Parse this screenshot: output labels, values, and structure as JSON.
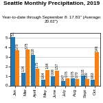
{
  "chart_data": {
    "type": "bar",
    "title": "Seattle Monthly Precipitation, 2019",
    "subtitle": "Year-to-date through September 8: 17.83\" (Average: 20.02\")",
    "categories": [
      "Jan",
      "Mar",
      "April",
      "May",
      "June",
      "July",
      "Aug",
      "Sept",
      "Oct"
    ],
    "series": [
      {
        "values": [
          5.1,
          1.34,
          3.18,
          0.64,
          0.98,
          0.47,
          0.78,
          1.03,
          0.63
        ],
        "value_labels": [
          "5.1",
          "1.34",
          "3.18",
          "0.64",
          "0.98",
          "0.47",
          "0.78",
          "1.03",
          "0.63"
        ]
      },
      {
        "values": [
          3.7,
          3.75,
          1.75,
          1.64,
          1.57,
          0.78,
          0.7,
          0.69,
          3.46
        ],
        "value_labels": [
          "3.70",
          "3.75",
          "1.75",
          "1.64",
          "1.57",
          "0.78",
          "0.70",
          "0.69",
          "3.46"
        ]
      }
    ],
    "ylim": [
      0,
      5.5
    ],
    "yticks": [
      0,
      1,
      2,
      3,
      4,
      5
    ],
    "grid": true,
    "data_labels": true
  }
}
